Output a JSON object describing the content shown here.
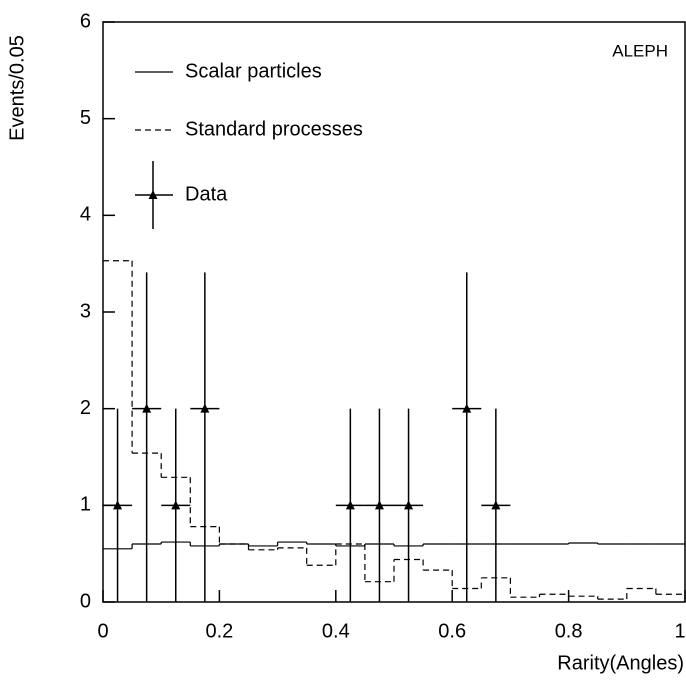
{
  "chart_data": {
    "type": "histogram",
    "annotation": "ALEPH",
    "x_label": "Rarity(Angles)",
    "y_label": "Events/0.05",
    "xlim": [
      0,
      1
    ],
    "ylim": [
      0,
      6
    ],
    "xticks": [
      0,
      0.2,
      0.4,
      0.6,
      0.8,
      1
    ],
    "yticks": [
      0,
      1,
      2,
      3,
      4,
      5,
      6
    ],
    "legend": "upper left",
    "bins": [
      0,
      0.05,
      0.1,
      0.15,
      0.2,
      0.25,
      0.3,
      0.35,
      0.4,
      0.45,
      0.5,
      0.55,
      0.6,
      0.65,
      0.7,
      0.75,
      0.8,
      0.85,
      0.9,
      0.95,
      1
    ],
    "series": [
      {
        "name": "Scalar particles",
        "color": "#000000",
        "line_style": "solid",
        "values": [
          0.55,
          0.6,
          0.62,
          0.58,
          0.6,
          0.58,
          0.62,
          0.6,
          0.58,
          0.6,
          0.58,
          0.6,
          0.6,
          0.6,
          0.6,
          0.6,
          0.61,
          0.6,
          0.6,
          0.6
        ]
      },
      {
        "name": "Standard processes",
        "color": "#000000",
        "line_style": "dashed",
        "values": [
          3.53,
          1.54,
          1.29,
          0.78,
          0.6,
          0.54,
          0.56,
          0.38,
          0.6,
          0.21,
          0.44,
          0.33,
          0.14,
          0.25,
          0.05,
          0.08,
          0.06,
          0.03,
          0.14,
          0.08
        ]
      },
      {
        "name": "Data",
        "color": "#000000",
        "marker": "triangle",
        "x": [
          0.025,
          0.075,
          0.125,
          0.175,
          0.425,
          0.475,
          0.525,
          0.625,
          0.675
        ],
        "values": [
          1,
          2,
          1,
          2,
          1,
          1,
          1,
          2,
          1
        ],
        "yerr_low": [
          1,
          2,
          1,
          2,
          1,
          1,
          1,
          2,
          1
        ],
        "yerr_high": [
          1,
          1.41,
          1,
          1.41,
          1,
          1,
          1,
          1.41,
          1
        ],
        "xerr": 0.025
      }
    ]
  }
}
